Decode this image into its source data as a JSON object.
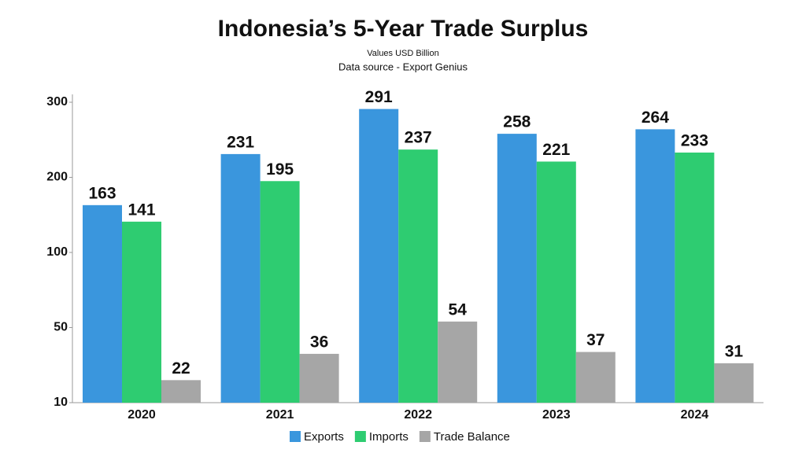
{
  "chart_data": {
    "type": "bar",
    "title": "Indonesia’s 5-Year Trade Surplus",
    "subtitle": "Values USD Billion",
    "source": "Data source - Export Genius",
    "categories": [
      "2020",
      "2021",
      "2022",
      "2023",
      "2024"
    ],
    "series": [
      {
        "name": "Exports",
        "color": "#3a96dd",
        "values": [
          163,
          231,
          291,
          258,
          264
        ]
      },
      {
        "name": "Imports",
        "color": "#2ecc71",
        "values": [
          141,
          195,
          237,
          221,
          233
        ]
      },
      {
        "name": "Trade Balance",
        "color": "#a6a6a6",
        "values": [
          22,
          36,
          54,
          37,
          31
        ]
      }
    ],
    "ylim": [
      10,
      300
    ],
    "yticks": [
      10,
      50,
      100,
      200,
      300
    ],
    "yscale": "tick-interpolated",
    "grid": false,
    "legend": "bottom"
  }
}
